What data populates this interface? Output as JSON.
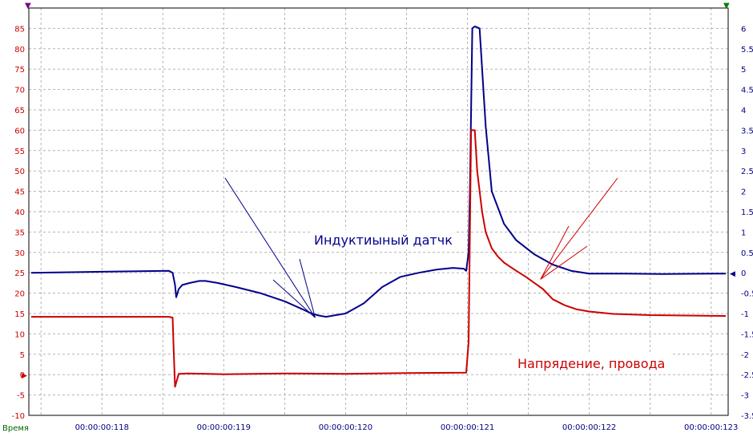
{
  "chart_data": {
    "type": "line",
    "x_axis": {
      "label": "Время",
      "range": [
        117.4,
        123.14
      ],
      "ticks": [
        118,
        119,
        120,
        121,
        122,
        123
      ],
      "tick_labels": [
        "00:00:00:118",
        "00:00:00:119",
        "00:00:00:120",
        "00:00:00:121",
        "00:00:00:122",
        "00:00:00:123"
      ],
      "minor_step": 0.5
    },
    "y_left": {
      "range": [
        -10,
        90
      ],
      "ticks": [
        -10,
        -5,
        0,
        5,
        10,
        15,
        20,
        25,
        30,
        35,
        40,
        45,
        50,
        55,
        60,
        65,
        70,
        75,
        80,
        85
      ],
      "color": "#cc0000"
    },
    "y_right": {
      "range": [
        -3.5,
        6.5
      ],
      "ticks": [
        -3.5,
        -3,
        -2.5,
        -2,
        -1.5,
        -1,
        -0.5,
        0,
        0.5,
        1,
        1.5,
        2,
        2.5,
        3,
        3.5,
        4,
        4.5,
        5,
        5.5,
        6
      ],
      "tick_labels": [
        "-3.5",
        "-3",
        "-2.5",
        "-2",
        "-1.5",
        "-1",
        "-0.5",
        "0",
        "0.5",
        "1",
        "1.5",
        "2",
        "2.5",
        "3",
        "3.5",
        "4",
        "4.5",
        "5",
        "5.5",
        "6"
      ],
      "color": "#000080"
    },
    "grid": true,
    "series": [
      {
        "name": "Индуктиыный датчк",
        "axis": "right",
        "color": "#00008b",
        "x": [
          117.42,
          118.55,
          118.58,
          118.6,
          118.61,
          118.63,
          118.66,
          118.72,
          118.8,
          118.85,
          118.95,
          119.1,
          119.3,
          119.5,
          119.65,
          119.72,
          119.78,
          119.84,
          119.9,
          120.0,
          120.15,
          120.3,
          120.45,
          120.6,
          120.75,
          120.88,
          120.97,
          120.99,
          121.01,
          121.02,
          121.04,
          121.06,
          121.1,
          121.15,
          121.2,
          121.3,
          121.4,
          121.55,
          121.7,
          121.85,
          122.0,
          122.3,
          122.6,
          123.12
        ],
        "y": [
          0.0,
          0.05,
          0.0,
          -0.3,
          -0.6,
          -0.4,
          -0.3,
          -0.25,
          -0.2,
          -0.2,
          -0.25,
          -0.35,
          -0.5,
          -0.7,
          -0.9,
          -1.0,
          -1.05,
          -1.08,
          -1.05,
          -1.0,
          -0.75,
          -0.35,
          -0.1,
          0.0,
          0.08,
          0.12,
          0.1,
          0.05,
          0.5,
          2.0,
          6.0,
          6.05,
          6.0,
          3.6,
          2.0,
          1.2,
          0.8,
          0.45,
          0.2,
          0.05,
          -0.02,
          -0.02,
          -0.03,
          -0.02
        ]
      },
      {
        "name": "Напрядение, провода",
        "axis": "left",
        "color": "#cc0000",
        "x": [
          117.42,
          118.55,
          118.58,
          118.59,
          118.6,
          118.63,
          118.7,
          119.0,
          119.5,
          120.0,
          120.5,
          120.99,
          121.01,
          121.03,
          121.06,
          121.08,
          121.12,
          121.15,
          121.2,
          121.25,
          121.3,
          121.4,
          121.48,
          121.55,
          121.62,
          121.7,
          121.8,
          121.9,
          122.0,
          122.2,
          122.5,
          123.12
        ],
        "y": [
          14.2,
          14.2,
          14.0,
          5.0,
          -3.0,
          0.2,
          0.3,
          0.1,
          0.3,
          0.2,
          0.4,
          0.5,
          8.0,
          60.0,
          60.0,
          50.0,
          40.0,
          35.0,
          31.0,
          29.0,
          27.5,
          25.5,
          24.0,
          22.5,
          21.0,
          18.5,
          17.0,
          16.0,
          15.5,
          14.9,
          14.6,
          14.4
        ]
      }
    ],
    "annotations": [
      {
        "text": "Индуктиыный датчк",
        "color": "#00008b",
        "at": [
          119.95,
          33.0
        ],
        "arrows_to": [
          [
            119.75,
            14.0
          ]
        ]
      },
      {
        "text": "Напрядение, провода",
        "color": "#cc0000",
        "at": [
          121.8,
          2.5
        ],
        "arrows_to": [
          [
            121.6,
            23.4
          ]
        ]
      }
    ],
    "markers": {
      "left_top": "▼",
      "right_top": "▼",
      "zero_left": "▶",
      "zero_right": "◀"
    }
  }
}
